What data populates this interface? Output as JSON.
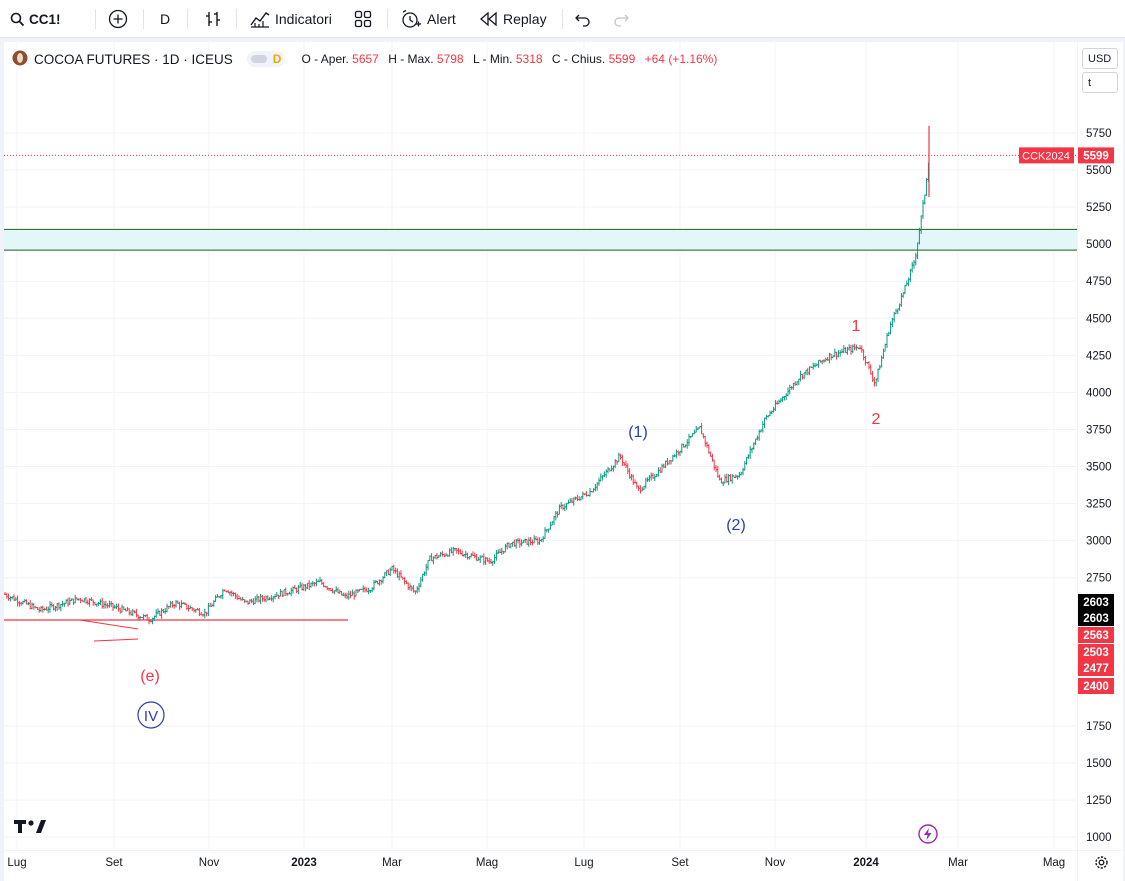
{
  "toolbar": {
    "symbol": "CC1!",
    "interval": "D",
    "indicators_label": "Indicatori",
    "alert_label": "Alert",
    "replay_label": "Replay"
  },
  "legend": {
    "title": "COCOA FUTURES · 1D · ICEUS",
    "interval_badge": "D",
    "open_label": "O - Aper.",
    "open": "5657",
    "high_label": "H - Max.",
    "high": "5798",
    "low_label": "L - Min.",
    "low": "5318",
    "close_label": "C - Chius.",
    "close": "5599",
    "change": "+64 (+1.16%)"
  },
  "axis": {
    "currency": "USD",
    "unit": "t",
    "price_ticks": [
      1000,
      1250,
      1500,
      1750,
      2750,
      3000,
      3250,
      3500,
      3750,
      4000,
      4250,
      4500,
      4750,
      5000,
      5250,
      5500,
      5750
    ],
    "time_labels": [
      "Lug",
      "Set",
      "Nov",
      "2023",
      "Mar",
      "Mag",
      "Lug",
      "Set",
      "Nov",
      "2024",
      "Mar",
      "Mag"
    ]
  },
  "price_badges": [
    {
      "value": "2603",
      "color": "#000000"
    },
    {
      "value": "2603",
      "color": "#000000"
    },
    {
      "value": "2563",
      "color": "#f23645"
    },
    {
      "value": "2503",
      "color": "#f23645"
    },
    {
      "value": "2477",
      "color": "#f23645"
    },
    {
      "value": "2400",
      "color": "#f23645"
    }
  ],
  "last_price": {
    "symbol": "CCK2024",
    "value": "5599",
    "color": "#f23645"
  },
  "zone": {
    "low": 4960,
    "high": 5100,
    "color": "#e3f7f9",
    "border": "#1b5e20"
  },
  "support_line": {
    "y": 2465,
    "color": "#f23645"
  },
  "wave_labels": [
    {
      "text": "(e)",
      "color": "#f23645"
    },
    {
      "text": "IV",
      "color": "#2a3eb1"
    },
    {
      "text": "(1)",
      "color": "#2a3eb1"
    },
    {
      "text": "(2)",
      "color": "#2a3eb1"
    },
    {
      "text": "1",
      "color": "#f23645"
    },
    {
      "text": "2",
      "color": "#f23645"
    }
  ],
  "colors": {
    "up": "#089981",
    "down": "#f23645",
    "grid": "#f0f3fa"
  }
}
